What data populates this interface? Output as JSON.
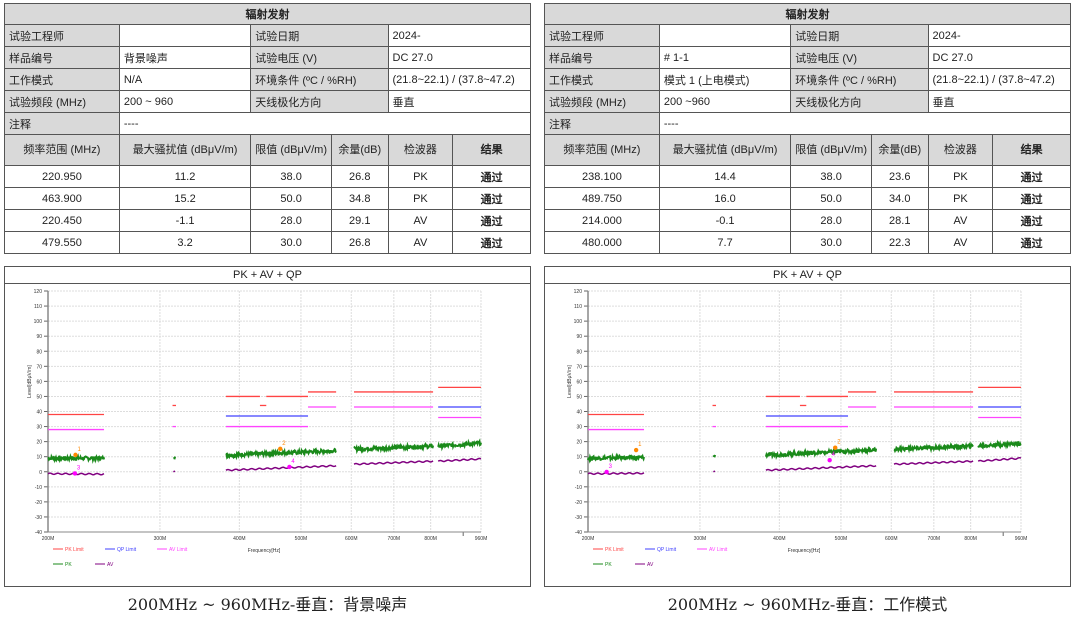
{
  "panels": [
    {
      "table": {
        "title": "辐射发射",
        "rows": [
          {
            "l1": "试验工程师",
            "v1": "",
            "l2": "试验日期",
            "v2": "2024-"
          },
          {
            "l1": "样品编号",
            "v1": "背景噪声",
            "l2": "试验电压 (V)",
            "v2": "DC 27.0"
          },
          {
            "l1": "工作模式",
            "v1": "N/A",
            "l2": "环境条件 (ºC / %RH)",
            "v2": "(21.8~22.1) / (37.8~47.2)"
          },
          {
            "l1": "试验频段 (MHz)",
            "v1": "200 ~ 960",
            "l2": "天线极化方向",
            "v2": "垂直"
          }
        ],
        "note_label": "注释",
        "note_value": "----",
        "headers": [
          "频率范围 (MHz)",
          "最大骚扰值 (dBμV/m)",
          "限值 (dBμV/m)",
          "余量(dB)",
          "检波器",
          "结果"
        ],
        "data": [
          [
            "220.950",
            "11.2",
            "38.0",
            "26.8",
            "PK",
            "通过"
          ],
          [
            "463.900",
            "15.2",
            "50.0",
            "34.8",
            "PK",
            "通过"
          ],
          [
            "220.450",
            "-1.1",
            "28.0",
            "29.1",
            "AV",
            "通过"
          ],
          [
            "479.550",
            "3.2",
            "30.0",
            "26.8",
            "AV",
            "通过"
          ]
        ]
      },
      "caption": "200MHz ~ 960MHz-垂直：背景噪声"
    },
    {
      "table": {
        "title": "辐射发射",
        "rows": [
          {
            "l1": "试验工程师",
            "v1": "",
            "l2": "试验日期",
            "v2": "2024-"
          },
          {
            "l1": "样品编号",
            "v1": "# 1-1",
            "l2": "试验电压 (V)",
            "v2": "DC 27.0"
          },
          {
            "l1": "工作模式",
            "v1": "模式 1 (上电模式)",
            "l2": "环境条件 (ºC / %RH)",
            "v2": "(21.8~22.1) / (37.8~47.2)"
          },
          {
            "l1": "试验频段 (MHz)",
            "v1": "200 ~960",
            "l2": "天线极化方向",
            "v2": "垂直"
          }
        ],
        "note_label": "注释",
        "note_value": "----",
        "headers": [
          "频率范围 (MHz)",
          "最大骚扰值 (dBμV/m)",
          "限值 (dBμV/m)",
          "余量(dB)",
          "检波器",
          "结果"
        ],
        "data": [
          [
            "238.100",
            "14.4",
            "38.0",
            "23.6",
            "PK",
            "通过"
          ],
          [
            "489.750",
            "16.0",
            "50.0",
            "34.0",
            "PK",
            "通过"
          ],
          [
            "214.000",
            "-0.1",
            "28.0",
            "28.1",
            "AV",
            "通过"
          ],
          [
            "480.000",
            "7.7",
            "30.0",
            "22.3",
            "AV",
            "通过"
          ]
        ]
      },
      "caption": "200MHz ~ 960MHz-垂直：工作模式"
    }
  ],
  "chart_data": [
    {
      "type": "line",
      "title": "PK + AV + QP",
      "xlabel": "Frequency[Hz]",
      "ylabel": "Level[dBμV/m]",
      "xscale": "log",
      "xlim": [
        200,
        960
      ],
      "ylim": [
        -40,
        120
      ],
      "grid": true,
      "xticks": [
        "200M",
        "300M",
        "400M",
        "500M",
        "600M",
        "700M",
        "800M",
        "960M"
      ],
      "xtick_values": [
        200,
        300,
        400,
        500,
        600,
        700,
        800,
        960
      ],
      "yticks": [
        -40,
        -30,
        -20,
        -10,
        0,
        10,
        20,
        30,
        40,
        50,
        60,
        70,
        80,
        90,
        100,
        110,
        120
      ],
      "legend": "bottom-left",
      "series": [
        {
          "name": "PK Limit",
          "color": "#ff4444",
          "segments": [
            [
              200,
              245,
              38
            ],
            [
              314,
              318,
              44
            ],
            [
              381,
              431,
              50
            ],
            [
              431,
              441,
              44
            ],
            [
              441,
              513,
              50
            ],
            [
              513,
              568,
              53
            ],
            [
              606,
              807,
              53
            ],
            [
              822,
              960,
              56
            ]
          ]
        },
        {
          "name": "QP Limit",
          "color": "#4040ff",
          "segments": [
            [
              381,
              513,
              37
            ],
            [
              822,
              960,
              43
            ]
          ]
        },
        {
          "name": "AV Limit",
          "color": "#ff44ff",
          "segments": [
            [
              200,
              245,
              28
            ],
            [
              314,
              318,
              30
            ],
            [
              381,
              513,
              30
            ],
            [
              513,
              568,
              43
            ],
            [
              606,
              807,
              43
            ],
            [
              822,
              960,
              36
            ]
          ]
        },
        {
          "name": "PK",
          "color": "#1a8a1a",
          "segments": [
            [
              200,
              245,
              9,
              9
            ],
            [
              315,
              317,
              10,
              10
            ],
            [
              381,
              568,
              11,
              14
            ],
            [
              606,
              807,
              15,
              17
            ],
            [
              822,
              960,
              17,
              19
            ]
          ]
        },
        {
          "name": "AV",
          "color": "#800080",
          "segments": [
            [
              200,
              245,
              -1.3,
              -1.6
            ],
            [
              315,
              317,
              0,
              0
            ],
            [
              381,
              568,
              1,
              4
            ],
            [
              606,
              807,
              5,
              7
            ],
            [
              822,
              960,
              7,
              8.5
            ]
          ]
        }
      ],
      "markers": [
        {
          "label": "1",
          "x": 220.95,
          "y": 11.2,
          "color": "#ff8800"
        },
        {
          "label": "2",
          "x": 463.9,
          "y": 15.2,
          "color": "#ff8800"
        },
        {
          "label": "3",
          "x": 220.45,
          "y": -1.1,
          "color": "#ff00ff"
        },
        {
          "label": "4",
          "x": 479.55,
          "y": 3.2,
          "color": "#ff00ff"
        }
      ]
    },
    {
      "type": "line",
      "title": "PK + AV + QP",
      "xlabel": "Frequency[Hz]",
      "ylabel": "Level[dBμV/m]",
      "xscale": "log",
      "xlim": [
        200,
        960
      ],
      "ylim": [
        -40,
        120
      ],
      "grid": true,
      "xticks": [
        "200M",
        "300M",
        "400M",
        "500M",
        "600M",
        "700M",
        "800M",
        "960M"
      ],
      "xtick_values": [
        200,
        300,
        400,
        500,
        600,
        700,
        800,
        960
      ],
      "yticks": [
        -40,
        -30,
        -20,
        -10,
        0,
        10,
        20,
        30,
        40,
        50,
        60,
        70,
        80,
        90,
        100,
        110,
        120
      ],
      "legend": "bottom-left",
      "series": [
        {
          "name": "PK Limit",
          "color": "#ff4444",
          "segments": [
            [
              200,
              245,
              38
            ],
            [
              314,
              318,
              44
            ],
            [
              381,
              431,
              50
            ],
            [
              431,
              441,
              44
            ],
            [
              441,
              513,
              50
            ],
            [
              513,
              568,
              53
            ],
            [
              606,
              807,
              53
            ],
            [
              822,
              960,
              56
            ]
          ]
        },
        {
          "name": "QP Limit",
          "color": "#4040ff",
          "segments": [
            [
              381,
              513,
              37
            ],
            [
              822,
              960,
              43
            ]
          ]
        },
        {
          "name": "AV Limit",
          "color": "#ff44ff",
          "segments": [
            [
              200,
              245,
              28
            ],
            [
              314,
              318,
              30
            ],
            [
              381,
              513,
              30
            ],
            [
              513,
              568,
              43
            ],
            [
              606,
              807,
              43
            ],
            [
              822,
              960,
              36
            ]
          ]
        },
        {
          "name": "PK",
          "color": "#1a8a1a",
          "segments": [
            [
              200,
              245,
              9,
              9.5
            ],
            [
              315,
              317,
              10.5,
              10.5
            ],
            [
              381,
              568,
              11,
              14.5
            ],
            [
              606,
              807,
              15,
              17
            ],
            [
              822,
              960,
              17,
              19
            ]
          ]
        },
        {
          "name": "AV",
          "color": "#800080",
          "segments": [
            [
              200,
              245,
              -1.3,
              -1
            ],
            [
              315,
              317,
              0,
              0
            ],
            [
              381,
              568,
              1,
              4
            ],
            [
              606,
              807,
              5,
              7
            ],
            [
              822,
              960,
              7,
              9
            ]
          ]
        }
      ],
      "markers": [
        {
          "label": "1",
          "x": 238.1,
          "y": 14.4,
          "color": "#ff8800"
        },
        {
          "label": "2",
          "x": 489.75,
          "y": 16.0,
          "color": "#ff8800"
        },
        {
          "label": "3",
          "x": 214.0,
          "y": -0.1,
          "color": "#ff00ff"
        },
        {
          "label": "4",
          "x": 480.0,
          "y": 7.7,
          "color": "#ff00ff"
        }
      ]
    }
  ]
}
